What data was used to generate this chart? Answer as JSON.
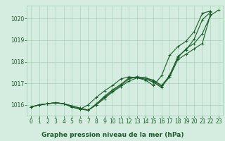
{
  "xlabel": "Graphe pression niveau de la mer (hPa)",
  "ylim": [
    1015.5,
    1020.6
  ],
  "xlim": [
    -0.5,
    23.5
  ],
  "yticks": [
    1016,
    1017,
    1018,
    1019,
    1020
  ],
  "xticks": [
    0,
    1,
    2,
    3,
    4,
    5,
    6,
    7,
    8,
    9,
    10,
    11,
    12,
    13,
    14,
    15,
    16,
    17,
    18,
    19,
    20,
    21,
    22,
    23
  ],
  "xtick_labels": [
    "0",
    "1",
    "2",
    "3",
    "4",
    "5",
    "6",
    "7",
    "8",
    "9",
    "10",
    "11",
    "12",
    "13",
    "14",
    "15",
    "16",
    "17",
    "18",
    "19",
    "20",
    "21",
    "22",
    "23"
  ],
  "background_color": "#d5ede0",
  "grid_color": "#9ecfb0",
  "line_color": "#1a5c28",
  "series_x": [
    [
      0,
      1,
      2,
      3,
      4,
      5,
      6,
      7,
      8,
      9,
      10,
      11,
      12,
      13,
      14,
      15,
      16,
      17,
      18,
      19,
      20,
      21,
      22
    ],
    [
      0,
      1,
      2,
      3,
      4,
      5,
      6,
      7,
      8,
      9,
      10,
      11,
      12,
      13,
      14,
      15,
      16,
      17,
      18,
      19,
      20,
      21,
      22
    ],
    [
      0,
      1,
      2,
      3,
      4,
      5,
      6,
      7,
      8,
      9,
      10,
      11,
      12,
      13,
      14,
      15,
      16,
      17,
      18,
      19,
      20,
      21,
      22
    ],
    [
      0,
      1,
      2,
      3,
      4,
      5,
      6,
      7,
      8,
      9,
      10,
      11,
      12,
      13,
      14,
      15,
      16,
      17,
      18,
      19,
      20,
      21,
      22,
      23
    ]
  ],
  "series_y": [
    [
      1015.9,
      1016.0,
      1016.05,
      1016.1,
      1016.05,
      1015.95,
      1015.85,
      1015.75,
      1016.0,
      1016.35,
      1016.65,
      1016.9,
      1017.2,
      1017.3,
      1017.25,
      1017.15,
      1016.9,
      1017.35,
      1018.25,
      1018.55,
      1019.05,
      1019.95,
      1020.3
    ],
    [
      1015.9,
      1016.0,
      1016.05,
      1016.1,
      1016.05,
      1015.95,
      1015.85,
      1015.75,
      1016.05,
      1016.4,
      1016.7,
      1016.95,
      1017.25,
      1017.3,
      1017.25,
      1017.1,
      1016.85,
      1017.3,
      1018.1,
      1018.35,
      1018.6,
      1018.85,
      1020.2
    ],
    [
      1015.9,
      1016.0,
      1016.05,
      1016.1,
      1016.05,
      1015.9,
      1015.8,
      1016.0,
      1016.35,
      1016.65,
      1016.9,
      1017.2,
      1017.3,
      1017.25,
      1017.15,
      1016.9,
      1017.35,
      1018.3,
      1018.7,
      1018.95,
      1019.4,
      1020.25,
      1020.35
    ],
    [
      1015.9,
      1016.0,
      1016.05,
      1016.1,
      1016.05,
      1015.9,
      1015.8,
      1015.75,
      1016.0,
      1016.3,
      1016.6,
      1016.85,
      1017.1,
      1017.25,
      1017.2,
      1017.05,
      1016.8,
      1017.4,
      1018.2,
      1018.6,
      1018.85,
      1019.3,
      1020.15,
      1020.4
    ]
  ],
  "marker": "+",
  "markersize": 3,
  "linewidth": 0.8,
  "font_color": "#1a5c28",
  "label_fontsize": 6.5,
  "tick_fontsize": 5.5
}
